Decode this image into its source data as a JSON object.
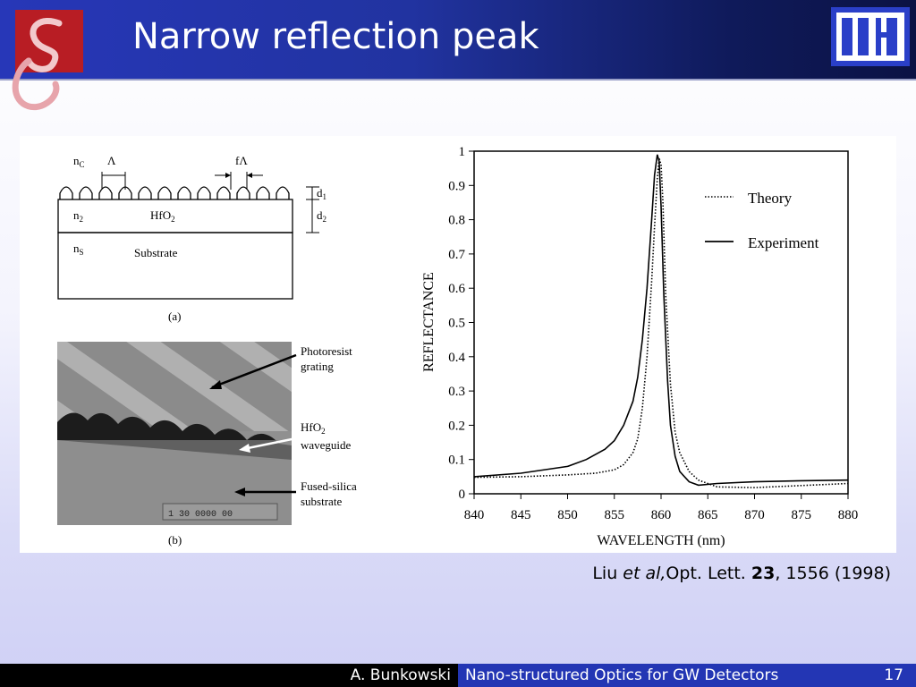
{
  "slide": {
    "title": "Narrow reflection peak",
    "footer": {
      "author": "A. Bunkowski",
      "talk": "Nano-structured Optics for GW Detectors",
      "page": "17"
    },
    "citation": {
      "authors": "Liu ",
      "etal": "et al,",
      "journal": "Opt. Lett. ",
      "volume": "23",
      "rest": ", 1556 (1998)"
    }
  },
  "diagram_a": {
    "nc": "n",
    "nc_sub": "C",
    "lambda": "Λ",
    "flambda": "fΛ",
    "d1": "d",
    "d1_sub": "1",
    "d2": "d",
    "d2_sub": "2",
    "n2": "n",
    "n2_sub": "2",
    "hfo2": "HfO",
    "hfo2_sub": "2",
    "ns": "n",
    "ns_sub": "S",
    "substrate": "Substrate",
    "caption": "(a)"
  },
  "micrograph_b": {
    "photoresist_1": "Photoresist",
    "photoresist_2": "grating",
    "hfo2": "HfO",
    "hfo2_sub": "2",
    "waveguide": "waveguide",
    "fused_1": "Fused-silica",
    "fused_2": "substrate",
    "scale_text": "1   30 0000 00",
    "caption": "(b)"
  },
  "colors": {
    "header_blue": "#2737b8",
    "footer_blue": "#2336b4"
  },
  "chart_data": {
    "type": "line",
    "xlabel": "WAVELENGTH (nm)",
    "ylabel": "REFLECTANCE",
    "xlim": [
      840,
      880
    ],
    "ylim": [
      0,
      1
    ],
    "xticks": [
      "840",
      "845",
      "850",
      "855",
      "860",
      "865",
      "870",
      "875",
      "880"
    ],
    "yticks": [
      "0",
      "0.1",
      "0.2",
      "0.3",
      "0.4",
      "0.5",
      "0.6",
      "0.7",
      "0.8",
      "0.9",
      "1"
    ],
    "legend_position": "top-right",
    "series": [
      {
        "name": "Theory",
        "style": "dotted",
        "x": [
          840,
          845,
          850,
          853,
          855,
          856,
          857,
          857.5,
          858,
          858.5,
          859,
          859.3,
          859.6,
          859.8,
          860,
          860.2,
          860.5,
          861,
          861.5,
          862,
          863,
          864,
          866,
          870,
          875,
          880
        ],
        "y": [
          0.048,
          0.05,
          0.055,
          0.06,
          0.07,
          0.085,
          0.12,
          0.16,
          0.25,
          0.4,
          0.62,
          0.78,
          0.92,
          0.98,
          0.96,
          0.85,
          0.58,
          0.32,
          0.18,
          0.12,
          0.065,
          0.04,
          0.02,
          0.018,
          0.024,
          0.03
        ]
      },
      {
        "name": "Experiment",
        "style": "solid",
        "x": [
          840,
          845,
          850,
          852,
          854,
          855,
          856,
          857,
          857.5,
          858,
          858.5,
          859,
          859.3,
          859.6,
          859.8,
          860,
          860.3,
          860.7,
          861,
          861.5,
          862,
          863,
          864,
          866,
          870,
          875,
          880
        ],
        "y": [
          0.05,
          0.06,
          0.08,
          0.1,
          0.13,
          0.155,
          0.2,
          0.27,
          0.34,
          0.45,
          0.6,
          0.8,
          0.93,
          0.99,
          0.97,
          0.84,
          0.58,
          0.33,
          0.2,
          0.11,
          0.065,
          0.035,
          0.025,
          0.03,
          0.035,
          0.038,
          0.04
        ]
      }
    ]
  }
}
